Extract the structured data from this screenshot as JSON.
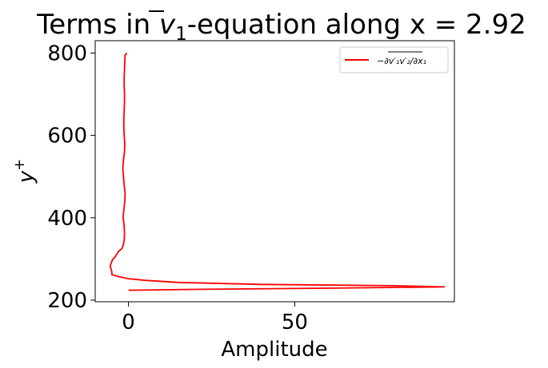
{
  "chart_data": {
    "type": "line",
    "title_prefix": "Terms in ",
    "title_var": "v",
    "title_sub": "1",
    "title_suffix": "-equation along x = 2.92",
    "xlabel": "Amplitude",
    "ylabel_base": "y",
    "ylabel_sup": "+",
    "xlim": [
      -10,
      98
    ],
    "ylim": [
      196,
      830
    ],
    "xticks": [
      0,
      50
    ],
    "yticks": [
      200,
      400,
      600,
      800
    ],
    "grid": false,
    "legend_position": "top-right",
    "series": [
      {
        "legend_label": "−∂v′₁v′₂/∂x₁",
        "color": "#ff0000",
        "points": [
          [
            0,
            224
          ],
          [
            20,
            226
          ],
          [
            60,
            229
          ],
          [
            95,
            232
          ],
          [
            80,
            235
          ],
          [
            40,
            238
          ],
          [
            15,
            243
          ],
          [
            5,
            248
          ],
          [
            0,
            252
          ],
          [
            -3,
            257
          ],
          [
            -5,
            262
          ],
          [
            -5,
            268
          ],
          [
            -5.2,
            275
          ],
          [
            -5.5,
            283
          ],
          [
            -5.2,
            290
          ],
          [
            -4.8,
            298
          ],
          [
            -4,
            305
          ],
          [
            -3.5,
            312
          ],
          [
            -3,
            318
          ],
          [
            -2,
            325
          ],
          [
            -1.5,
            335
          ],
          [
            -1.3,
            345
          ],
          [
            -1.2,
            360
          ],
          [
            -1.3,
            380
          ],
          [
            -1.6,
            400
          ],
          [
            -1.4,
            420
          ],
          [
            -1.1,
            440
          ],
          [
            -1.0,
            460
          ],
          [
            -1.3,
            480
          ],
          [
            -1.5,
            500
          ],
          [
            -1.7,
            520
          ],
          [
            -1.5,
            540
          ],
          [
            -1.2,
            560
          ],
          [
            -1.1,
            580
          ],
          [
            -1.3,
            600
          ],
          [
            -1.4,
            620
          ],
          [
            -1.4,
            640
          ],
          [
            -1.3,
            660
          ],
          [
            -1.2,
            680
          ],
          [
            -1.2,
            700
          ],
          [
            -1.3,
            720
          ],
          [
            -1.3,
            740
          ],
          [
            -1.2,
            760
          ],
          [
            -1.1,
            780
          ],
          [
            -1.0,
            795
          ],
          [
            -0.5,
            800
          ]
        ]
      }
    ]
  }
}
